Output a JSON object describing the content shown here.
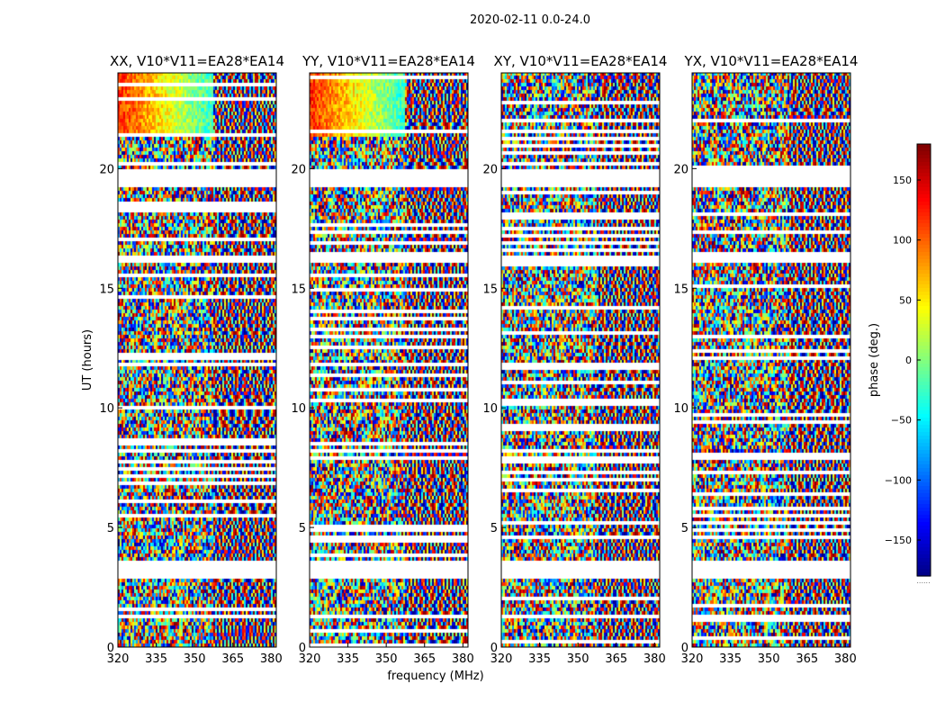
{
  "figure": {
    "suptitle": "2020-02-11 0.0-24.0",
    "xlabel": "frequency (MHz)",
    "ylabel": "UT (hours)",
    "colorbar_label": "phase (deg.)",
    "colorbar_dots": "......"
  },
  "chart_data": {
    "type": "heatmap",
    "description": "Phase vs frequency and UT waterfall for four polarization products",
    "x_range": [
      320,
      382
    ],
    "y_range": [
      0,
      24
    ],
    "x_ticks": [
      320,
      335,
      350,
      365,
      380
    ],
    "y_ticks": [
      0,
      5,
      10,
      15,
      20
    ],
    "color_range": [
      -180,
      180
    ],
    "colorbar_ticks": [
      150,
      100,
      50,
      0,
      -50,
      -100,
      -150
    ],
    "colormap": "jet",
    "panels": [
      {
        "title": "XX, V10*V11=EA28*EA14"
      },
      {
        "title": "YY, V10*V11=EA28*EA14"
      },
      {
        "title": "XY, V10*V11=EA28*EA14"
      },
      {
        "title": "YX, V10*V11=EA28*EA14"
      }
    ],
    "data_gaps_ut": [
      [
        19.2,
        20.0
      ],
      [
        2.8,
        3.6
      ],
      [
        16.1,
        16.4
      ],
      [
        1.2,
        1.4
      ]
    ]
  }
}
